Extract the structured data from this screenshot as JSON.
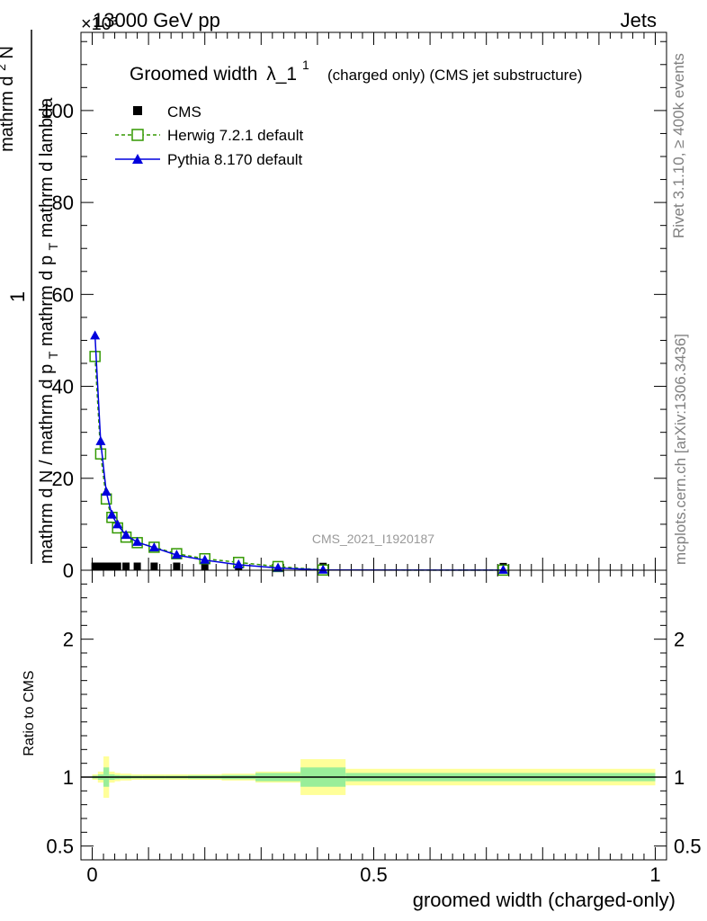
{
  "header": {
    "beam": "13000 GeV pp",
    "process": "Jets",
    "exponent": "×10³"
  },
  "side": {
    "rivet": "Rivet 3.1.10, ≥ 400k events",
    "mcplots": "mcplots.cern.ch [arXiv:1306.3436]"
  },
  "chart_data": [
    {
      "type": "line",
      "title": "Groomed width λ_1¹ (charged only) (CMS jet substructure)",
      "title_main": "Groomed width",
      "title_lambda": "λ_1",
      "title_sup": "1",
      "title_rest": "(charged only) (CMS jet substructure)",
      "ylabel_num": "1",
      "ylabel_den": "mathrm d N / mathrm d p_T mathrm d p_T mathrm d lambda",
      "ylabel_den_parts": [
        "mathrm d N / mathrm d p",
        "T",
        "mathrm d p",
        "T",
        "mathrm d lambda"
      ],
      "ylabel_top": "mathrm d²N",
      "ylabel_top_parts": [
        "mathrm d",
        "2",
        "N"
      ],
      "y_scale_exponent": "×10³",
      "ylim": [
        0,
        117
      ],
      "xlim": [
        -0.02,
        1.02
      ],
      "yticks": [
        "0",
        "20",
        "40",
        "60",
        "80",
        "100"
      ],
      "watermark": "CMS_2021_I1920187",
      "legend": {
        "position": "top-left"
      },
      "series": [
        {
          "name": "CMS",
          "color": "#000000",
          "marker": "filled-square",
          "x": [
            0.005,
            0.015,
            0.025,
            0.035,
            0.045,
            0.06,
            0.08,
            0.11,
            0.15,
            0.2,
            0.26,
            0.33,
            0.41,
            0.73
          ],
          "y": [
            0.1,
            0.1,
            0.1,
            0.1,
            0.1,
            0.1,
            0.1,
            0.1,
            0.1,
            0.1,
            0.1,
            0.05,
            0.05,
            0.02
          ]
        },
        {
          "name": "Herwig 7.2.1 default",
          "color": "#339900",
          "marker": "open-square",
          "dash": "dashed",
          "x": [
            0.005,
            0.015,
            0.025,
            0.035,
            0.045,
            0.06,
            0.08,
            0.11,
            0.15,
            0.2,
            0.26,
            0.33,
            0.41,
            0.73
          ],
          "y": [
            46.5,
            25.3,
            15.5,
            11.5,
            9.2,
            7.2,
            6.0,
            5.0,
            3.6,
            2.5,
            1.7,
            0.8,
            0.05,
            0.02
          ]
        },
        {
          "name": "Pythia 8.170 default",
          "color": "#0000dd",
          "marker": "filled-triangle",
          "x": [
            0.005,
            0.015,
            0.025,
            0.035,
            0.045,
            0.06,
            0.08,
            0.11,
            0.15,
            0.2,
            0.26,
            0.33,
            0.41,
            0.73
          ],
          "y": [
            51.0,
            28.0,
            17.0,
            12.0,
            9.9,
            7.6,
            6.1,
            4.9,
            3.3,
            2.2,
            1.2,
            0.5,
            0.05,
            0.02
          ]
        }
      ]
    },
    {
      "type": "area",
      "ylabel": "Ratio to CMS",
      "xlabel": "groomed width (charged-only)",
      "xticks": [
        "0",
        "0.5",
        "1"
      ],
      "yticks": [
        "0.5",
        "1",
        "2"
      ],
      "ylim": [
        0.4,
        2.5
      ],
      "reference": 1,
      "band_edges": [
        0.0,
        0.01,
        0.02,
        0.03,
        0.04,
        0.05,
        0.07,
        0.09,
        0.13,
        0.17,
        0.23,
        0.29,
        0.37,
        0.45,
        1.0
      ],
      "band_outer": [
        0.02,
        0.04,
        0.15,
        0.04,
        0.03,
        0.025,
        0.02,
        0.02,
        0.02,
        0.02,
        0.025,
        0.04,
        0.13,
        0.06
      ],
      "band_inner": [
        0.01,
        0.02,
        0.07,
        0.02,
        0.015,
        0.012,
        0.01,
        0.01,
        0.01,
        0.012,
        0.015,
        0.03,
        0.07,
        0.03
      ],
      "outer_color": "#ffff99",
      "inner_color": "#99ee99"
    }
  ]
}
